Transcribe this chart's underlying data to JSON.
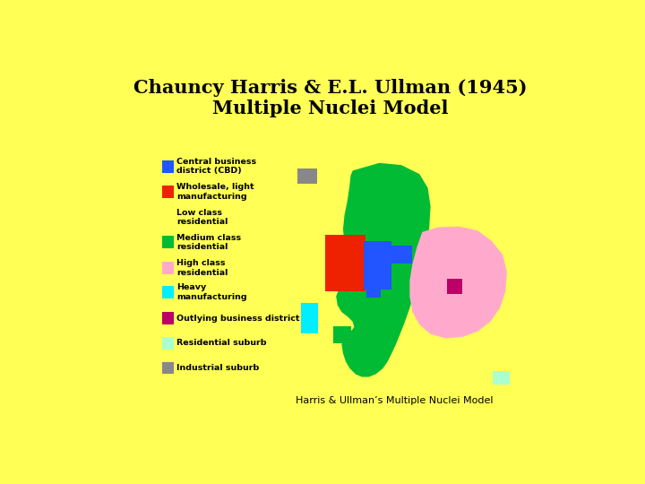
{
  "title_line1": "Chauncy Harris & E.L. Ullman (1945)",
  "title_line2": "Multiple Nuclei Model",
  "bg_color": "#FFFF55",
  "subtitle": "Harris & Ullman’s Multiple Nuclei Model",
  "legend_items": [
    {
      "label": "Central business\ndistrict (CBD)",
      "color": "#2255FF"
    },
    {
      "label": "Wholesale, light\nmanufacturing",
      "color": "#EE2200"
    },
    {
      "label": "Low class\nresidential",
      "color": null
    },
    {
      "label": "Medium class\nresidential",
      "color": "#00BB33"
    },
    {
      "label": "High class\nresidential",
      "color": "#FFAACC"
    },
    {
      "label": "Heavy\nmanufacturing",
      "color": "#00EEFF"
    },
    {
      "label": "Outlying business district",
      "color": "#BB0066"
    },
    {
      "label": "Residential suburb",
      "color": "#AAFFCC"
    },
    {
      "label": "Industrial suburb",
      "color": "#888888"
    }
  ]
}
